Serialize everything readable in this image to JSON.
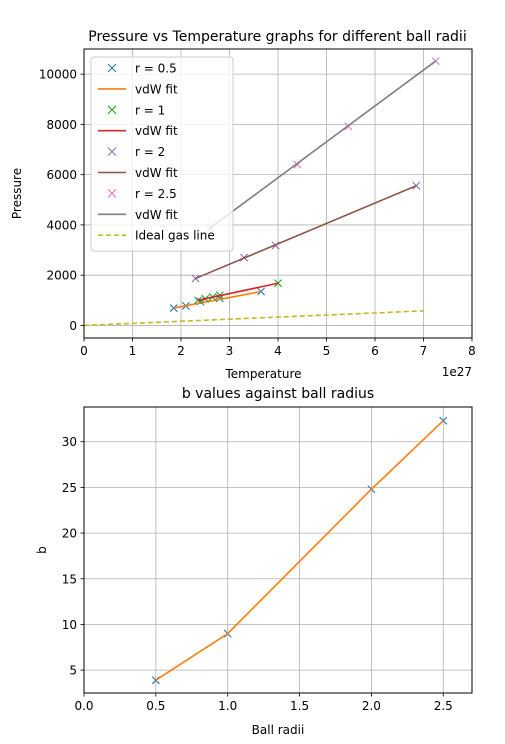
{
  "chart_data": [
    {
      "type": "line",
      "title": "Pressure vs Temperature graphs for different ball radii",
      "xlabel": "Temperature",
      "ylabel": "Pressure",
      "x_offset_text": "1e27",
      "xlim": [
        0,
        8
      ],
      "ylim": [
        -500,
        11000
      ],
      "x_ticks": [
        "0",
        "1",
        "2",
        "3",
        "4",
        "5",
        "6",
        "7",
        "8"
      ],
      "x_tick_values": [
        0,
        1,
        2,
        3,
        4,
        5,
        6,
        7,
        8
      ],
      "y_ticks": [
        "0",
        "2000",
        "4000",
        "6000",
        "8000",
        "10000"
      ],
      "y_tick_values": [
        0,
        2000,
        4000,
        6000,
        8000,
        10000
      ],
      "grid": true,
      "legend_position": "upper-left",
      "series": [
        {
          "name": "r = 0.5",
          "kind": "marker",
          "color": "#1f77b4",
          "x": [
            1.85,
            2.1,
            2.4,
            2.8,
            3.65
          ],
          "y": [
            690,
            780,
            950,
            1080,
            1350
          ]
        },
        {
          "name": "vdW fit",
          "kind": "line",
          "color": "#ff7f0e",
          "x": [
            1.85,
            3.65
          ],
          "y": [
            690,
            1350
          ]
        },
        {
          "name": "r = 1",
          "kind": "marker",
          "color": "#2ca02c",
          "x": [
            2.35,
            2.5,
            2.65,
            2.8,
            4.0
          ],
          "y": [
            1000,
            1060,
            1130,
            1200,
            1680
          ]
        },
        {
          "name": "vdW fit",
          "kind": "line",
          "color": "#d62728",
          "x": [
            2.35,
            4.0
          ],
          "y": [
            1000,
            1680
          ]
        },
        {
          "name": "r = 2",
          "kind": "marker",
          "color": "#9467bd",
          "x": [
            2.3,
            3.3,
            3.95,
            6.85
          ],
          "y": [
            1870,
            2700,
            3180,
            5560
          ]
        },
        {
          "name": "vdW fit",
          "kind": "line",
          "color": "#8c564b",
          "x": [
            2.3,
            6.85
          ],
          "y": [
            1870,
            5560
          ]
        },
        {
          "name": "r = 2.5",
          "kind": "marker",
          "color": "#e377c2",
          "x": [
            2.6,
            4.4,
            5.45,
            7.25
          ],
          "y": [
            3880,
            6400,
            7920,
            10520
          ]
        },
        {
          "name": "vdW fit",
          "kind": "line",
          "color": "#7f7f7f",
          "x": [
            2.6,
            7.25
          ],
          "y": [
            3880,
            10520
          ]
        },
        {
          "name": "Ideal gas line",
          "kind": "dashed",
          "color": "#bcbd22",
          "x": [
            0,
            7.0
          ],
          "y": [
            0,
            580
          ]
        }
      ]
    },
    {
      "type": "line",
      "title": "b values against ball radius",
      "xlabel": "Ball radii",
      "ylabel": "b",
      "xlim": [
        0,
        2.7
      ],
      "ylim": [
        2.5,
        33.8
      ],
      "x_ticks": [
        "0.0",
        "0.5",
        "1.0",
        "1.5",
        "2.0",
        "2.5"
      ],
      "x_tick_values": [
        0,
        0.5,
        1.0,
        1.5,
        2.0,
        2.5
      ],
      "y_ticks": [
        "5",
        "10",
        "15",
        "20",
        "25",
        "30"
      ],
      "y_tick_values": [
        5,
        10,
        15,
        20,
        25,
        30
      ],
      "grid": true,
      "series": [
        {
          "kind": "marker",
          "color": "#1f77b4",
          "x": [
            0.5,
            1.0,
            2.0,
            2.5
          ],
          "y": [
            3.9,
            9.0,
            24.8,
            32.3
          ]
        },
        {
          "kind": "line",
          "color": "#ff7f0e",
          "x": [
            0.5,
            1.0,
            2.0,
            2.5
          ],
          "y": [
            3.9,
            9.0,
            24.8,
            32.3
          ]
        }
      ]
    }
  ]
}
